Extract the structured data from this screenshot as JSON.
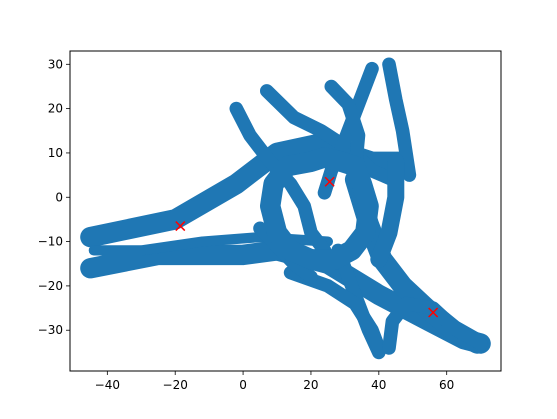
{
  "chart_data": {
    "type": "scatter",
    "title": "",
    "xlabel": "",
    "ylabel": "",
    "xlim": [
      -51,
      76
    ],
    "ylim": [
      -39.2,
      33
    ],
    "xticks": [
      -40,
      -20,
      0,
      20,
      40,
      60
    ],
    "yticks": [
      -30,
      -20,
      -10,
      0,
      10,
      20,
      30
    ],
    "grid": false,
    "series": [
      {
        "marker": "o",
        "color": "#1f77b4",
        "strokes": [
          {
            "points": [
              [
                -45,
                -9
              ],
              [
                -20,
                -5
              ],
              [
                -2,
                3
              ],
              [
                10,
                10
              ],
              [
                22,
                12
              ],
              [
                38,
                8
              ],
              [
                46,
                8
              ]
            ],
            "width": 6
          },
          {
            "points": [
              [
                -45,
                -16
              ],
              [
                -25,
                -13
              ],
              [
                0,
                -13
              ],
              [
                10,
                -12
              ],
              [
                25,
                -15
              ],
              [
                40,
                -22
              ],
              [
                55,
                -28
              ],
              [
                65,
                -32
              ],
              [
                70,
                -33
              ]
            ],
            "width": 6
          },
          {
            "points": [
              [
                -44,
                -12
              ],
              [
                -30,
                -12
              ],
              [
                -12,
                -10
              ],
              [
                5,
                -9
              ],
              [
                25,
                -10
              ]
            ],
            "width": 3
          },
          {
            "points": [
              [
                -2,
                20
              ],
              [
                2,
                14
              ],
              [
                8,
                8
              ],
              [
                14,
                3
              ],
              [
                18,
                -2
              ],
              [
                20,
                -8
              ],
              [
                24,
                -12
              ]
            ],
            "width": 4
          },
          {
            "points": [
              [
                7,
                24
              ],
              [
                15,
                18
              ],
              [
                23,
                15
              ],
              [
                33,
                10
              ],
              [
                38,
                6
              ],
              [
                44,
                4
              ]
            ],
            "width": 4
          },
          {
            "points": [
              [
                38,
                29
              ],
              [
                33,
                19
              ],
              [
                29,
                11
              ],
              [
                26,
                6
              ],
              [
                24,
                1
              ]
            ],
            "width": 4
          },
          {
            "points": [
              [
                43,
                30
              ],
              [
                45,
                22
              ],
              [
                47,
                15
              ],
              [
                48,
                10
              ],
              [
                49,
                5
              ]
            ],
            "width": 4
          },
          {
            "points": [
              [
                26,
                25
              ],
              [
                31,
                21
              ],
              [
                34,
                14
              ],
              [
                33,
                6
              ]
            ],
            "width": 4
          },
          {
            "points": [
              [
                33,
                4
              ],
              [
                37,
                -6
              ],
              [
                41,
                -14
              ],
              [
                47,
                -20
              ],
              [
                54,
                -25
              ],
              [
                62,
                -30
              ],
              [
                69,
                -33
              ]
            ],
            "width": 6
          },
          {
            "points": [
              [
                28,
                -12
              ],
              [
                33,
                -22
              ],
              [
                37,
                -30
              ],
              [
                40,
                -35
              ]
            ],
            "width": 4
          },
          {
            "points": [
              [
                14,
                -17
              ],
              [
                25,
                -20
              ],
              [
                33,
                -24
              ],
              [
                38,
                -30
              ],
              [
                40,
                -34
              ]
            ],
            "width": 4
          },
          {
            "points": [
              [
                43,
                -34
              ],
              [
                44,
                -28
              ],
              [
                48,
                -24
              ],
              [
                56,
                -25
              ],
              [
                63,
                -30
              ],
              [
                70,
                -33
              ]
            ],
            "width": 4
          },
          {
            "points": [
              [
                5,
                -7
              ],
              [
                10,
                -11
              ],
              [
                15,
                -15
              ],
              [
                20,
                -18
              ]
            ],
            "width": 4
          },
          {
            "points": [
              [
                20,
                8
              ],
              [
                24,
                9
              ],
              [
                29,
                8
              ],
              [
                33,
                7
              ],
              [
                35,
                3
              ],
              [
                37,
                -2
              ],
              [
                36,
                -8
              ],
              [
                32,
                -12
              ],
              [
                27,
                -14
              ],
              [
                20,
                -14
              ],
              [
                14,
                -12
              ],
              [
                10,
                -8
              ],
              [
                8,
                -2
              ],
              [
                9,
                3
              ],
              [
                13,
                7
              ],
              [
                20,
                8
              ]
            ],
            "width": 6
          },
          {
            "points": [
              [
                45,
                8
              ],
              [
                45,
                0
              ],
              [
                43,
                -8
              ],
              [
                40,
                -14
              ]
            ],
            "width": 5
          }
        ]
      },
      {
        "marker": "x",
        "color": "#ff0000",
        "x": [
          -18.5,
          25.5,
          56
        ],
        "y": [
          -6.5,
          3.5,
          -26
        ]
      }
    ]
  }
}
